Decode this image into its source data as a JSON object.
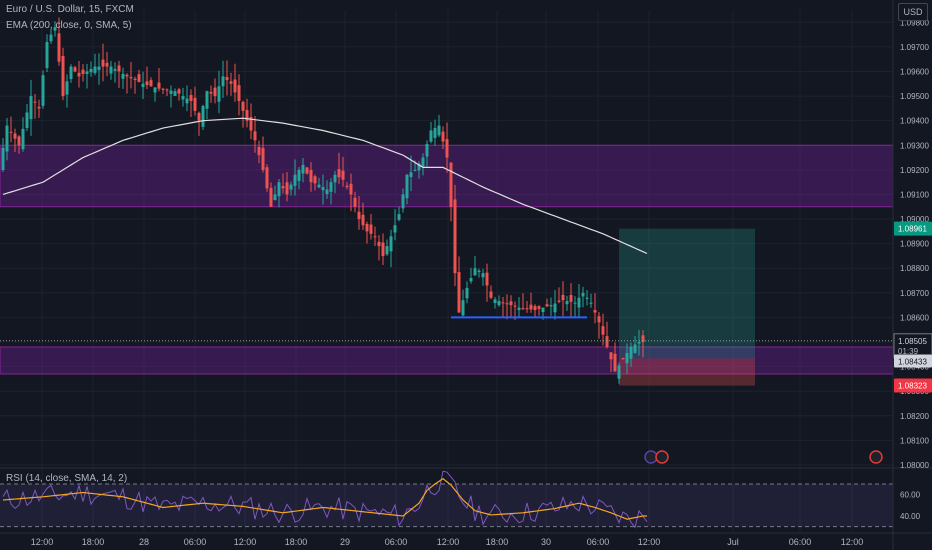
{
  "header": {
    "symbol_line": "Euro / U.S. Dollar, 15, FXCM",
    "indicator_line": "EMA (200, close, 0, SMA, 5)",
    "currency": "USD"
  },
  "rsi": {
    "label": "RSI (14, close, SMA, 14, 2)",
    "ticks": [
      "60.00",
      "40.00"
    ]
  },
  "chart_data": {
    "type": "candlestick",
    "symbol": "Euro / U.S. Dollar",
    "interval": "15",
    "exchange": "FXCM",
    "ylim": [
      1.08,
      1.0985
    ],
    "y_ticks": [
      "1.09800",
      "1.09700",
      "1.09600",
      "1.09500",
      "1.09400",
      "1.09300",
      "1.09200",
      "1.09100",
      "1.09000",
      "1.08900",
      "1.08800",
      "1.08700",
      "1.08600",
      "1.08500",
      "1.08400",
      "1.08300",
      "1.08200",
      "1.08100",
      "1.08000"
    ],
    "x_ticks": [
      "12:00",
      "18:00",
      "28",
      "06:00",
      "12:00",
      "18:00",
      "29",
      "06:00",
      "12:00",
      "18:00",
      "30",
      "06:00",
      "12:00",
      "Jul",
      "06:00",
      "12:00"
    ],
    "price_labels": {
      "target": "1.08961",
      "current": "1.08505",
      "countdown": "01:39",
      "entry": "1.08433",
      "stop": "1.08323"
    },
    "colors": {
      "up": "#26a69a",
      "down": "#ef5350",
      "ema": "#e0e0e0",
      "zone": "#7b1fa2",
      "support": "#2962ff",
      "rsi": "#7e57c2",
      "rsi_ma": "#f5a623"
    },
    "zones": [
      {
        "name": "upper-supply-zone",
        "from": 1.0905,
        "to": 1.093
      },
      {
        "name": "lower-demand-zone",
        "from": 1.0837,
        "to": 1.0848
      }
    ],
    "support_line": {
      "price": 1.086,
      "from_index": 112,
      "to_index": 146
    },
    "position": {
      "entry": 1.08433,
      "target": 1.08961,
      "stop": 1.08323,
      "start_index": 154,
      "end_index": 188
    },
    "ohlc_path": [
      [
        0,
        1.092
      ],
      [
        2,
        1.0938
      ],
      [
        5,
        1.093
      ],
      [
        8,
        1.095
      ],
      [
        10,
        1.0945
      ],
      [
        12,
        1.0972
      ],
      [
        14,
        1.0978
      ],
      [
        16,
        1.095
      ],
      [
        18,
        1.0962
      ],
      [
        20,
        1.0958
      ],
      [
        24,
        1.0962
      ],
      [
        28,
        1.0962
      ],
      [
        32,
        1.0958
      ],
      [
        36,
        1.0955
      ],
      [
        40,
        1.0953
      ],
      [
        44,
        1.0952
      ],
      [
        48,
        1.0948
      ],
      [
        50,
        1.094
      ],
      [
        52,
        1.0952
      ],
      [
        54,
        1.095
      ],
      [
        56,
        1.0958
      ],
      [
        58,
        1.0955
      ],
      [
        60,
        1.0948
      ],
      [
        62,
        1.094
      ],
      [
        64,
        1.0932
      ],
      [
        66,
        1.092
      ],
      [
        68,
        1.0905
      ],
      [
        70,
        1.0915
      ],
      [
        72,
        1.091
      ],
      [
        74,
        1.0918
      ],
      [
        76,
        1.0922
      ],
      [
        78,
        1.0915
      ],
      [
        80,
        1.0914
      ],
      [
        82,
        1.0912
      ],
      [
        84,
        1.0918
      ],
      [
        86,
        1.0916
      ],
      [
        88,
        1.091
      ],
      [
        90,
        1.09
      ],
      [
        92,
        1.0895
      ],
      [
        94,
        1.0893
      ],
      [
        96,
        1.0885
      ],
      [
        98,
        1.0893
      ],
      [
        100,
        1.0902
      ],
      [
        102,
        1.0918
      ],
      [
        104,
        1.092
      ],
      [
        106,
        1.0925
      ],
      [
        108,
        1.0936
      ],
      [
        110,
        1.0938
      ],
      [
        112,
        1.0925
      ],
      [
        113,
        1.0905
      ],
      [
        114,
        1.0878
      ],
      [
        115,
        1.0862
      ],
      [
        117,
        1.0872
      ],
      [
        119,
        1.088
      ],
      [
        121,
        1.0878
      ],
      [
        123,
        1.0868
      ],
      [
        126,
        1.0866
      ],
      [
        130,
        1.0864
      ],
      [
        134,
        1.0863
      ],
      [
        138,
        1.0865
      ],
      [
        141,
        1.0867
      ],
      [
        144,
        1.0866
      ],
      [
        146,
        1.087
      ],
      [
        148,
        1.0866
      ],
      [
        150,
        1.0858
      ],
      [
        152,
        1.0848
      ],
      [
        154,
        1.0838
      ],
      [
        156,
        1.0843
      ],
      [
        158,
        1.0848
      ],
      [
        160,
        1.085
      ]
    ],
    "ema_path": [
      [
        0,
        1.091
      ],
      [
        10,
        1.0915
      ],
      [
        20,
        1.0925
      ],
      [
        30,
        1.0932
      ],
      [
        40,
        1.0937
      ],
      [
        50,
        1.094
      ],
      [
        60,
        1.0941
      ],
      [
        70,
        1.0939
      ],
      [
        80,
        1.0936
      ],
      [
        90,
        1.0932
      ],
      [
        100,
        1.0926
      ],
      [
        105,
        1.0921
      ],
      [
        110,
        1.0921
      ],
      [
        115,
        1.0917
      ],
      [
        120,
        1.0913
      ],
      [
        130,
        1.0906
      ],
      [
        140,
        1.09
      ],
      [
        150,
        1.0894
      ],
      [
        161,
        1.0886
      ]
    ],
    "rsi_ylim": [
      25,
      85
    ],
    "rsi_ma_path": [
      [
        0,
        55
      ],
      [
        10,
        58
      ],
      [
        20,
        62
      ],
      [
        30,
        58
      ],
      [
        40,
        48
      ],
      [
        50,
        52
      ],
      [
        60,
        49
      ],
      [
        70,
        43
      ],
      [
        80,
        48
      ],
      [
        90,
        44
      ],
      [
        100,
        40
      ],
      [
        104,
        52
      ],
      [
        106,
        64
      ],
      [
        108,
        70
      ],
      [
        110,
        75
      ],
      [
        112,
        69
      ],
      [
        115,
        55
      ],
      [
        118,
        45
      ],
      [
        122,
        41
      ],
      [
        130,
        43
      ],
      [
        138,
        47
      ],
      [
        144,
        52
      ],
      [
        148,
        48
      ],
      [
        152,
        43
      ],
      [
        156,
        37
      ],
      [
        160,
        40
      ]
    ]
  }
}
